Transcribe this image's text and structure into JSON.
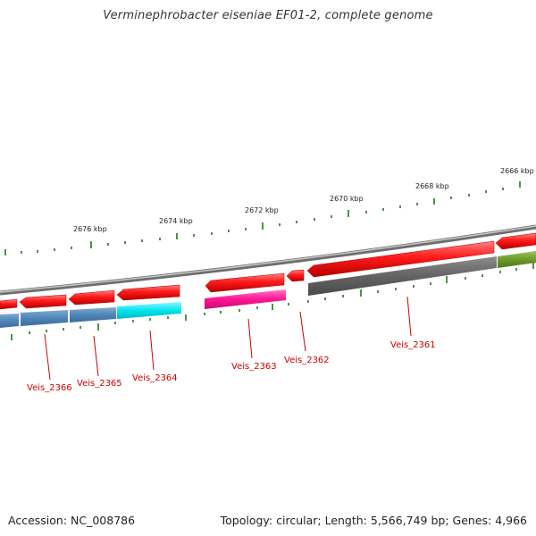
{
  "title": "Verminephrobacter eiseniae EF01-2, complete genome",
  "footer": {
    "accession": "Accession: NC_008786",
    "summary": "Topology: circular; Length: 5,566,749 bp; Genes: 4,966"
  },
  "kbp_labels": [
    "2676 kbp",
    "2674 kbp",
    "2672 kbp",
    "2670 kbp",
    "2668 kbp",
    "2666 kbp"
  ],
  "gene_labels": [
    "Veis_2366",
    "Veis_2365",
    "Veis_2364",
    "Veis_2363",
    "Veis_2362",
    "Veis_2361"
  ],
  "colors": {
    "backbone": "#8a8a8a",
    "tick": "#1e7a1e",
    "label": "#cc0000",
    "gene_red": "#ff1a1a",
    "steelblue": "#4f86b8",
    "cyan": "#00e5ee",
    "magenta": "#ff1493",
    "gray": "#666666",
    "olive": "#6e9a2a"
  }
}
